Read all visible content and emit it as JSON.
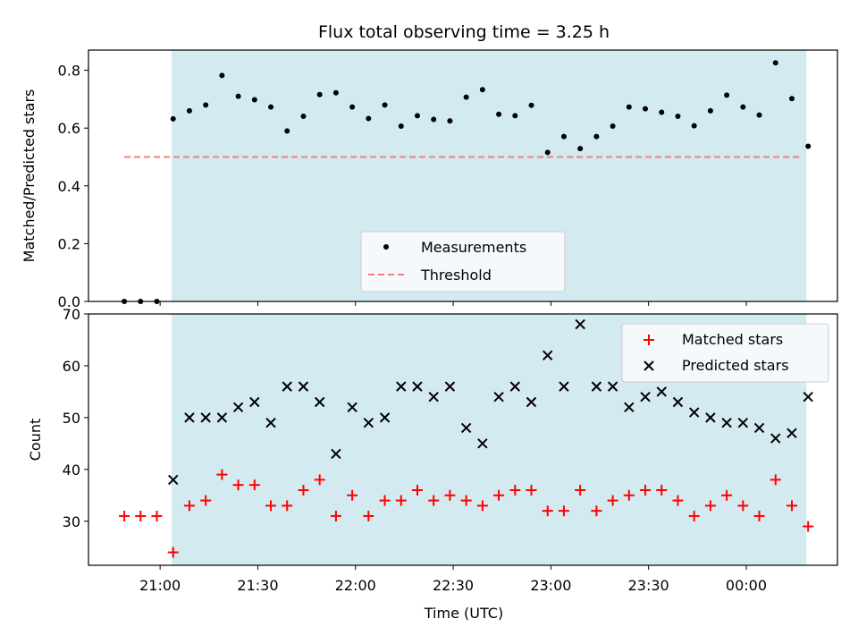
{
  "chart_data": [
    {
      "type": "scatter",
      "title": "Flux total observing time = 3.25 h",
      "ylabel": "Matched/Predicted stars",
      "ylim": [
        0,
        0.87
      ],
      "yticks": [
        "0.0",
        "0.2",
        "0.4",
        "0.6",
        "0.8"
      ],
      "ytick_values": [
        0,
        0.2,
        0.4,
        0.6,
        0.8
      ],
      "x_range_minutes": [
        -22,
        208
      ],
      "observing_window_minutes": [
        3.5,
        198.5
      ],
      "observing_window_color": "#d4eaf1",
      "threshold": {
        "value": 0.5,
        "x_start": -11,
        "x_end": 197,
        "color": "#f08080",
        "label": "Threshold"
      },
      "legend_position": "lower-center",
      "series": [
        {
          "name": "Measurements",
          "color": "#000000",
          "marker": "dot",
          "x": [
            -11,
            -6,
            -1,
            4,
            9,
            14,
            19,
            24,
            29,
            34,
            39,
            44,
            49,
            54,
            59,
            64,
            69,
            74,
            79,
            84,
            89,
            94,
            99,
            104,
            109,
            114,
            119,
            124,
            129,
            134,
            139,
            144,
            149,
            154,
            159,
            164,
            169,
            174,
            179,
            184,
            189,
            194,
            199
          ],
          "y": [
            0,
            0,
            0,
            0.632,
            0.66,
            0.68,
            0.782,
            0.71,
            0.698,
            0.673,
            0.59,
            0.641,
            0.716,
            0.722,
            0.673,
            0.633,
            0.68,
            0.607,
            0.643,
            0.63,
            0.625,
            0.707,
            0.733,
            0.648,
            0.643,
            0.679,
            0.516,
            0.571,
            0.529,
            0.571,
            0.607,
            0.673,
            0.667,
            0.655,
            0.641,
            0.608,
            0.66,
            0.714,
            0.673,
            0.645,
            0.826,
            0.702,
            0.537
          ]
        }
      ]
    },
    {
      "type": "scatter",
      "xlabel": "Time (UTC)",
      "ylabel": "Count",
      "ylim": [
        21.5,
        70
      ],
      "yticks": [
        "30",
        "40",
        "50",
        "60",
        "70"
      ],
      "ytick_values": [
        30,
        40,
        50,
        60,
        70
      ],
      "xticks": [
        "21:00",
        "21:30",
        "22:00",
        "22:30",
        "23:00",
        "23:30",
        "00:00"
      ],
      "xtick_values_minutes": [
        0,
        30,
        60,
        90,
        120,
        150,
        180
      ],
      "legend_position": "upper-right",
      "series": [
        {
          "name": "Matched stars",
          "color": "#ff0000",
          "marker": "plus",
          "x": [
            -11,
            -6,
            -1,
            4,
            9,
            14,
            19,
            24,
            29,
            34,
            39,
            44,
            49,
            54,
            59,
            64,
            69,
            74,
            79,
            84,
            89,
            94,
            99,
            104,
            109,
            114,
            119,
            124,
            129,
            134,
            139,
            144,
            149,
            154,
            159,
            164,
            169,
            174,
            179,
            184,
            189,
            194,
            199
          ],
          "y": [
            31,
            31,
            31,
            24,
            33,
            34,
            39,
            37,
            37,
            33,
            33,
            36,
            38,
            31,
            35,
            31,
            34,
            34,
            36,
            34,
            35,
            34,
            33,
            35,
            36,
            36,
            32,
            32,
            36,
            32,
            34,
            35,
            36,
            36,
            34,
            31,
            33,
            35,
            33,
            31,
            38,
            33,
            29
          ]
        },
        {
          "name": "Predicted stars",
          "color": "#000000",
          "marker": "x",
          "x": [
            4,
            9,
            14,
            19,
            24,
            29,
            34,
            39,
            44,
            49,
            54,
            59,
            64,
            69,
            74,
            79,
            84,
            89,
            94,
            99,
            104,
            109,
            114,
            119,
            124,
            129,
            134,
            139,
            144,
            149,
            154,
            159,
            164,
            169,
            174,
            179,
            184,
            189,
            194,
            199
          ],
          "y": [
            38,
            50,
            50,
            50,
            52,
            53,
            49,
            56,
            56,
            53,
            43,
            52,
            49,
            50,
            56,
            56,
            54,
            56,
            48,
            45,
            54,
            56,
            53,
            62,
            56,
            68,
            56,
            56,
            52,
            54,
            55,
            53,
            51,
            50,
            49,
            49,
            48,
            46,
            47,
            54
          ]
        }
      ]
    }
  ]
}
